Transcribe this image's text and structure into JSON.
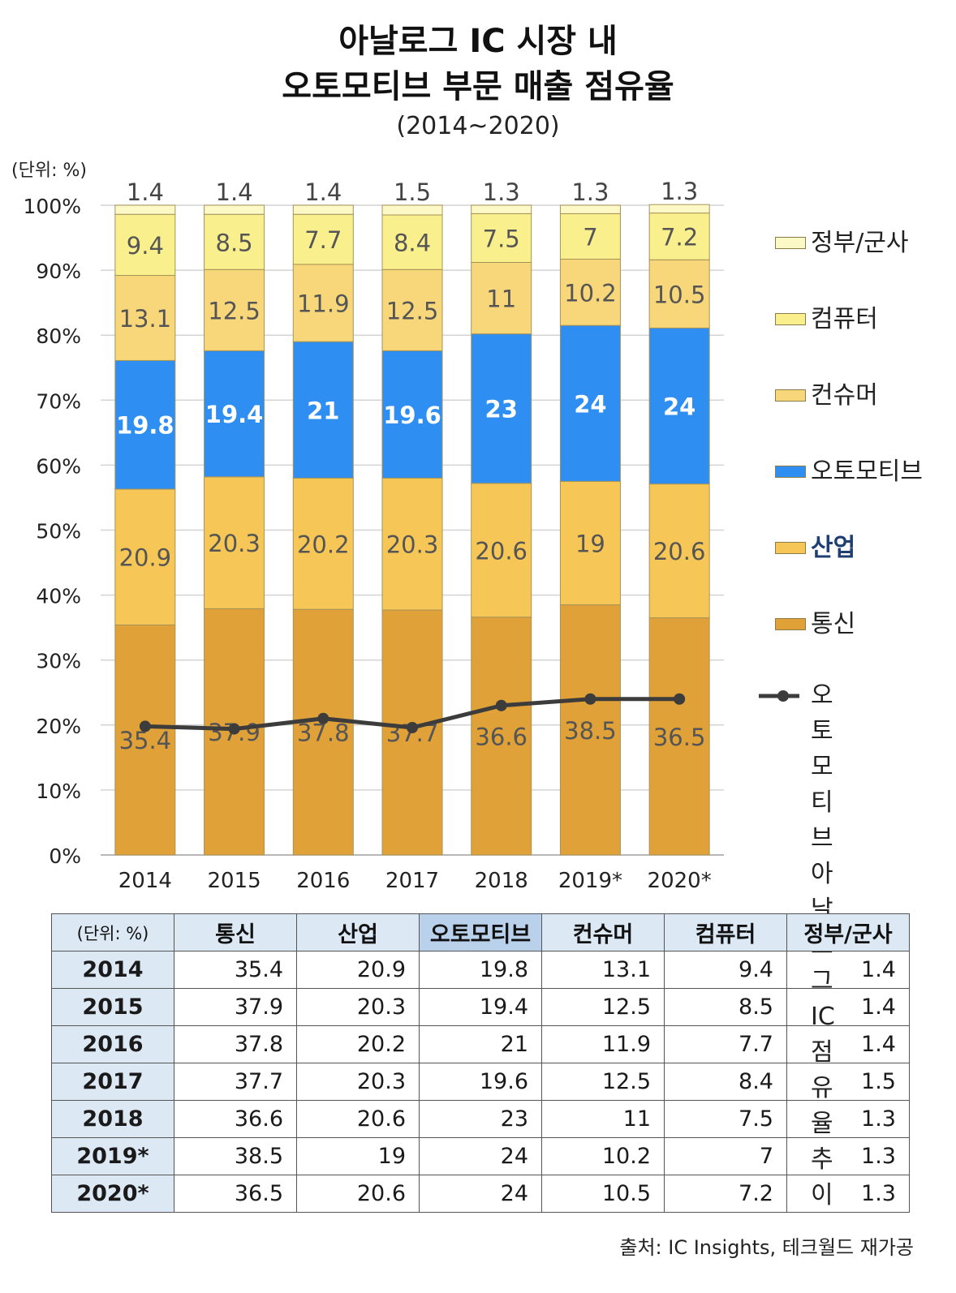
{
  "header": {
    "title_line1": "아날로그 IC 시장 내",
    "title_line2": "오토모티브 부문 매출 점유율",
    "subtitle": "(2014~2020)",
    "unit": "(단위: %)"
  },
  "chart_data": {
    "type": "bar",
    "stacked": true,
    "categories": [
      "2014",
      "2015",
      "2016",
      "2017",
      "2018",
      "2019*",
      "2020*"
    ],
    "y_ticks": [
      "0%",
      "10%",
      "20%",
      "30%",
      "40%",
      "50%",
      "60%",
      "70%",
      "80%",
      "90%",
      "100%"
    ],
    "ylim": [
      0,
      100
    ],
    "grid": true,
    "legend_position": "right",
    "series": [
      {
        "name": "통신",
        "color": "#dfa138",
        "label_color": "#555555",
        "values": [
          35.4,
          37.9,
          37.8,
          37.7,
          36.6,
          38.5,
          36.5
        ]
      },
      {
        "name": "산업",
        "color": "#f6c756",
        "label_color": "#555555",
        "values": [
          20.9,
          20.3,
          20.2,
          20.3,
          20.6,
          19,
          20.6
        ]
      },
      {
        "name": "오토모티브",
        "color": "#2f8ef1",
        "label_color": "#ffffff",
        "values": [
          19.8,
          19.4,
          21,
          19.6,
          23,
          24,
          24
        ]
      },
      {
        "name": "컨슈머",
        "color": "#f7d77a",
        "label_color": "#555555",
        "values": [
          13.1,
          12.5,
          11.9,
          12.5,
          11,
          10.2,
          10.5
        ]
      },
      {
        "name": "컴퓨터",
        "color": "#f9ef8d",
        "label_color": "#555555",
        "values": [
          9.4,
          8.5,
          7.7,
          8.4,
          7.5,
          7,
          7.2
        ]
      },
      {
        "name": "정부/군사",
        "color": "#fdf9c6",
        "label_color": "#555555",
        "values": [
          1.4,
          1.4,
          1.4,
          1.5,
          1.3,
          1.3,
          1.3
        ]
      }
    ],
    "line_series": {
      "name": "오토모티브\n아날로그 IC\n점유율 추이",
      "color": "#3c3c3c",
      "values": [
        19.8,
        19.4,
        21,
        19.6,
        23,
        24,
        24
      ]
    },
    "legend_order": [
      "정부/군사",
      "컴퓨터",
      "컨슈머",
      "오토모티브",
      "산업",
      "통신"
    ],
    "legend_highlight": "산업",
    "legend_highlight_color": "#1f3f73"
  },
  "table": {
    "corner": "(단위: %)",
    "columns": [
      "통신",
      "산업",
      "오토모티브",
      "컨슈머",
      "컴퓨터",
      "정부/군사"
    ],
    "highlight_column": "오토모티브",
    "rows": [
      {
        "year": "2014",
        "values": [
          "35.4",
          "20.9",
          "19.8",
          "13.1",
          "9.4",
          "1.4"
        ]
      },
      {
        "year": "2015",
        "values": [
          "37.9",
          "20.3",
          "19.4",
          "12.5",
          "8.5",
          "1.4"
        ]
      },
      {
        "year": "2016",
        "values": [
          "37.8",
          "20.2",
          "21",
          "11.9",
          "7.7",
          "1.4"
        ]
      },
      {
        "year": "2017",
        "values": [
          "37.7",
          "20.3",
          "19.6",
          "12.5",
          "8.4",
          "1.5"
        ]
      },
      {
        "year": "2018",
        "values": [
          "36.6",
          "20.6",
          "23",
          "11",
          "7.5",
          "1.3"
        ]
      },
      {
        "year": "2019*",
        "values": [
          "38.5",
          "19",
          "24",
          "10.2",
          "7",
          "1.3"
        ]
      },
      {
        "year": "2020*",
        "values": [
          "36.5",
          "20.6",
          "24",
          "10.5",
          "7.2",
          "1.3"
        ]
      }
    ]
  },
  "source": "출처: IC Insights, 테크월드 재가공"
}
